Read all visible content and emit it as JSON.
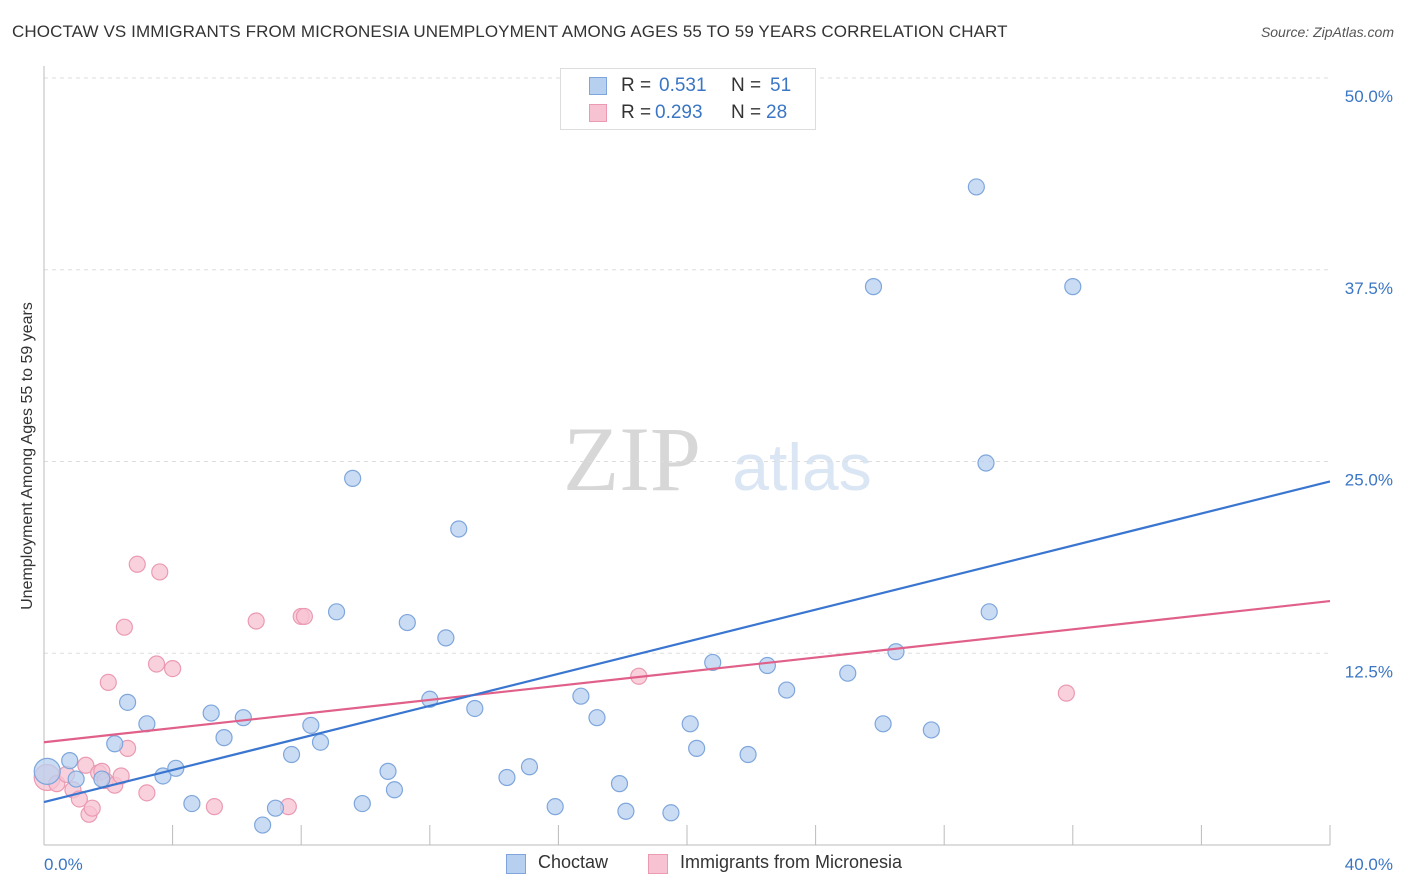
{
  "header": {
    "title": "CHOCTAW VS IMMIGRANTS FROM MICRONESIA UNEMPLOYMENT AMONG AGES 55 TO 59 YEARS CORRELATION CHART",
    "source": "Source: ZipAtlas.com"
  },
  "watermark": {
    "zip": "ZIP",
    "atlas": "atlas"
  },
  "legend_top": {
    "rows": [
      {
        "r_label": "R =",
        "r_value": "0.531",
        "n_label": "N =",
        "n_value": "51"
      },
      {
        "r_label": "R =",
        "r_value": "0.293",
        "n_label": "N =",
        "n_value": "28"
      }
    ]
  },
  "colors": {
    "choctaw_fill": "#b8d0ef",
    "choctaw_stroke": "#7ea6dc",
    "choctaw_line": "#3a76cf",
    "micronesia_fill": "#f7c2d1",
    "micronesia_stroke": "#eb9ab2",
    "micronesia_line": "#e0608a",
    "tick_label": "#3a76c4",
    "grid": "#dddddd"
  },
  "chart_data": {
    "type": "scatter",
    "title": "CHOCTAW VS IMMIGRANTS FROM MICRONESIA UNEMPLOYMENT AMONG AGES 55 TO 59 YEARS CORRELATION CHART",
    "xlabel": "",
    "ylabel": "Unemployment Among Ages 55 to 59 years",
    "xlim": [
      0,
      40
    ],
    "ylim": [
      0,
      50
    ],
    "x_tick_labels": [
      "0.0%",
      "40.0%"
    ],
    "y_ticks": [
      {
        "value": 12.5,
        "label": "12.5%"
      },
      {
        "value": 25.0,
        "label": "25.0%"
      },
      {
        "value": 37.5,
        "label": "37.5%"
      },
      {
        "value": 50.0,
        "label": "50.0%"
      }
    ],
    "legend": [
      "Choctaw",
      "Immigrants from Micronesia"
    ],
    "series": [
      {
        "name": "Choctaw",
        "r": 0.531,
        "n": 51,
        "trend": {
          "x": [
            0,
            40
          ],
          "y": [
            2.8,
            23.7
          ]
        },
        "points": [
          {
            "x": 0.1,
            "y": 4.8,
            "big": true
          },
          {
            "x": 0.8,
            "y": 5.5
          },
          {
            "x": 1.0,
            "y": 4.3
          },
          {
            "x": 1.8,
            "y": 4.3
          },
          {
            "x": 2.2,
            "y": 6.6
          },
          {
            "x": 2.6,
            "y": 9.3
          },
          {
            "x": 3.2,
            "y": 7.9
          },
          {
            "x": 3.7,
            "y": 4.5
          },
          {
            "x": 4.1,
            "y": 5.0
          },
          {
            "x": 4.6,
            "y": 2.7
          },
          {
            "x": 5.2,
            "y": 8.6
          },
          {
            "x": 5.6,
            "y": 7.0
          },
          {
            "x": 6.2,
            "y": 8.3
          },
          {
            "x": 6.8,
            "y": 1.3
          },
          {
            "x": 7.2,
            "y": 2.4
          },
          {
            "x": 7.7,
            "y": 5.9
          },
          {
            "x": 8.3,
            "y": 7.8
          },
          {
            "x": 8.6,
            "y": 6.7
          },
          {
            "x": 9.1,
            "y": 15.2
          },
          {
            "x": 9.6,
            "y": 23.9
          },
          {
            "x": 9.9,
            "y": 2.7
          },
          {
            "x": 10.7,
            "y": 4.8
          },
          {
            "x": 10.9,
            "y": 3.6
          },
          {
            "x": 11.3,
            "y": 14.5
          },
          {
            "x": 12.0,
            "y": 9.5
          },
          {
            "x": 12.5,
            "y": 13.5
          },
          {
            "x": 12.9,
            "y": 20.6
          },
          {
            "x": 13.4,
            "y": 8.9
          },
          {
            "x": 14.4,
            "y": 4.4
          },
          {
            "x": 15.1,
            "y": 5.1
          },
          {
            "x": 15.9,
            "y": 2.5
          },
          {
            "x": 16.7,
            "y": 9.7
          },
          {
            "x": 17.9,
            "y": 4.0
          },
          {
            "x": 17.2,
            "y": 8.3
          },
          {
            "x": 18.1,
            "y": 2.2
          },
          {
            "x": 19.5,
            "y": 2.1
          },
          {
            "x": 20.1,
            "y": 7.9
          },
          {
            "x": 20.3,
            "y": 6.3
          },
          {
            "x": 20.8,
            "y": 11.9
          },
          {
            "x": 21.9,
            "y": 5.9
          },
          {
            "x": 22.5,
            "y": 11.7
          },
          {
            "x": 23.1,
            "y": 10.1
          },
          {
            "x": 25.0,
            "y": 11.2
          },
          {
            "x": 25.8,
            "y": 36.4
          },
          {
            "x": 26.1,
            "y": 7.9
          },
          {
            "x": 26.5,
            "y": 12.6
          },
          {
            "x": 27.6,
            "y": 7.5
          },
          {
            "x": 29.4,
            "y": 15.2
          },
          {
            "x": 29.0,
            "y": 42.9
          },
          {
            "x": 29.3,
            "y": 24.9
          },
          {
            "x": 32.0,
            "y": 36.4
          }
        ]
      },
      {
        "name": "Immigrants from Micronesia",
        "r": 0.293,
        "n": 28,
        "trend": {
          "x": [
            0,
            40
          ],
          "y": [
            6.7,
            15.9
          ]
        },
        "points": [
          {
            "x": 0.1,
            "y": 4.4,
            "big": true
          },
          {
            "x": 0.4,
            "y": 4.0
          },
          {
            "x": 0.7,
            "y": 4.6
          },
          {
            "x": 0.9,
            "y": 3.6
          },
          {
            "x": 1.1,
            "y": 3.0
          },
          {
            "x": 1.3,
            "y": 5.2
          },
          {
            "x": 1.4,
            "y": 2.0
          },
          {
            "x": 1.5,
            "y": 2.4
          },
          {
            "x": 1.7,
            "y": 4.7
          },
          {
            "x": 1.8,
            "y": 4.8
          },
          {
            "x": 1.9,
            "y": 4.2
          },
          {
            "x": 2.0,
            "y": 10.6
          },
          {
            "x": 2.2,
            "y": 3.9
          },
          {
            "x": 2.4,
            "y": 4.5
          },
          {
            "x": 2.5,
            "y": 14.2
          },
          {
            "x": 2.6,
            "y": 6.3
          },
          {
            "x": 2.9,
            "y": 18.3
          },
          {
            "x": 3.2,
            "y": 3.4
          },
          {
            "x": 3.5,
            "y": 11.8
          },
          {
            "x": 3.6,
            "y": 17.8
          },
          {
            "x": 4.0,
            "y": 11.5
          },
          {
            "x": 5.3,
            "y": 2.5
          },
          {
            "x": 6.6,
            "y": 14.6
          },
          {
            "x": 7.6,
            "y": 2.5
          },
          {
            "x": 8.0,
            "y": 14.9
          },
          {
            "x": 8.1,
            "y": 14.9
          },
          {
            "x": 18.5,
            "y": 11.0
          },
          {
            "x": 31.8,
            "y": 9.9
          }
        ]
      }
    ]
  }
}
